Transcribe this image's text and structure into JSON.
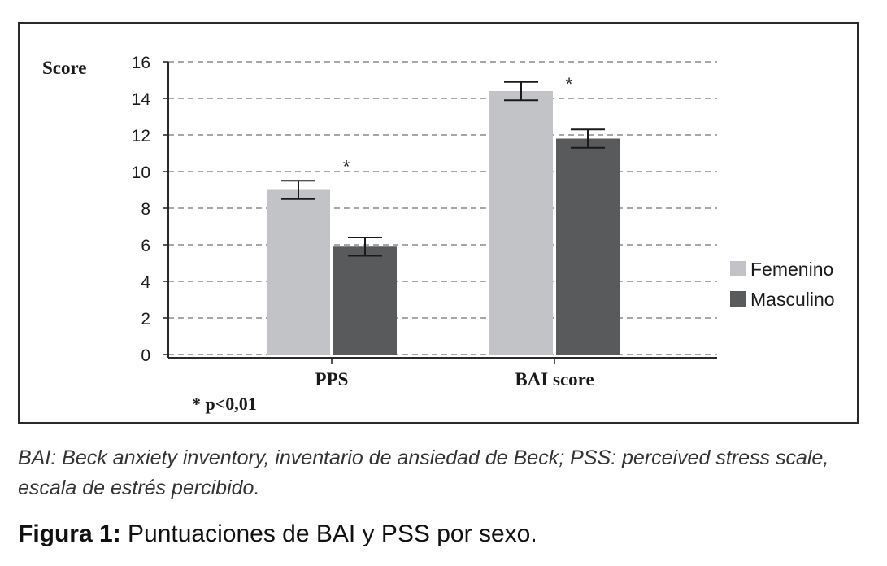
{
  "chart_data": {
    "type": "bar",
    "categories": [
      "PPS",
      "BAI score"
    ],
    "series": [
      {
        "name": "Femenino",
        "values": [
          9.0,
          14.4
        ],
        "error": [
          0.5,
          0.5
        ],
        "color": "#c2c3c7"
      },
      {
        "name": "Masculino",
        "values": [
          5.9,
          11.8
        ],
        "error": [
          0.5,
          0.5
        ],
        "color": "#595a5c"
      }
    ],
    "ylabel": "Score",
    "xlabel": "",
    "ylim": [
      0,
      16
    ],
    "yticks": [
      0,
      2,
      4,
      6,
      8,
      10,
      12,
      14,
      16
    ],
    "grid": true,
    "legend_position": "right",
    "significance_marks": [
      {
        "category": "PPS",
        "label": "*"
      },
      {
        "category": "BAI score",
        "label": "*"
      }
    ],
    "footnote": "* p<0,01"
  },
  "note": "BAI: Beck anxiety inventory, inventario de ansiedad de Beck; PSS: perceived stress scale, escala de estrés percibido.",
  "caption": {
    "label": "Figura 1:",
    "text": " Puntuaciones de BAI y PSS por sexo."
  }
}
